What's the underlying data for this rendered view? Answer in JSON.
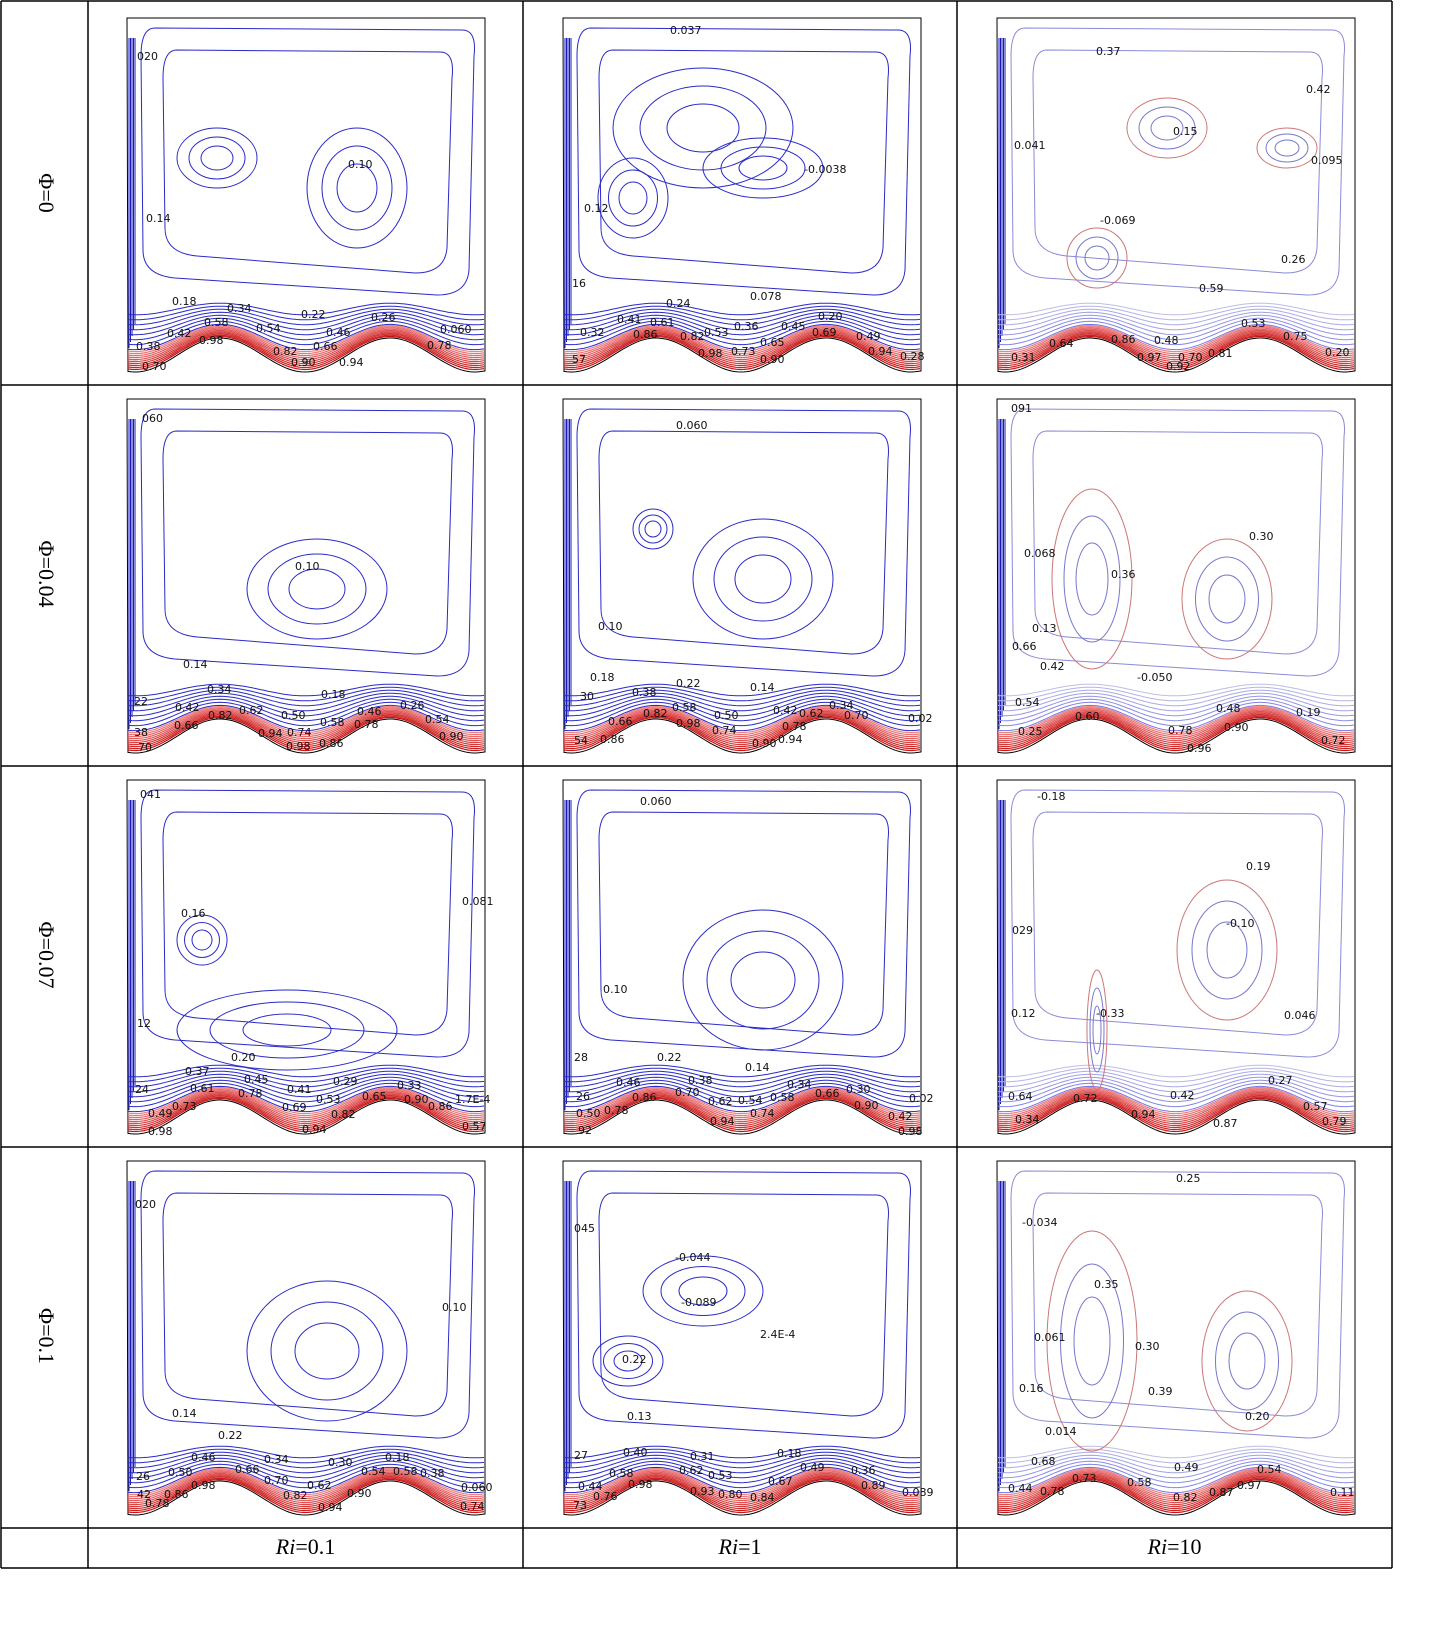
{
  "rows": [
    {
      "label": "Φ=0",
      "panels": [
        {
          "labels": [
            "020",
            "0.10",
            "0.14",
            "0.18",
            "0.34",
            "0.22",
            "0.26",
            "0.58",
            "0.54",
            "0.46",
            "0.060",
            "0.42",
            "0.98",
            "0.66",
            "0.82",
            "0.78",
            "0.90",
            "0.94",
            "0.38",
            "0.70"
          ]
        },
        {
          "labels": [
            "0.037",
            "-0.0038",
            "0.12",
            "16",
            "0.24",
            "0.078",
            "0.41",
            "0.61",
            "0.20",
            "0.32",
            "0.86",
            "0.82",
            "0.53",
            "0.36",
            "0.45",
            "0.65",
            "0.69",
            "0.49",
            "0.98",
            "0.73",
            "0.90",
            "0.94",
            "0.28",
            "57"
          ]
        },
        {
          "labels": [
            "0.37",
            "0.42",
            "0.15",
            "0.041",
            "0.095",
            "-0.069",
            "0.26",
            "0.59",
            "0.53",
            "0.75",
            "0.64",
            "0.86",
            "0.48",
            "0.31",
            "0.97",
            "0.70",
            "0.81",
            "0.92",
            "0.20"
          ]
        }
      ]
    },
    {
      "label": "Φ=0.04",
      "panels": [
        {
          "labels": [
            "060",
            "0.10",
            "0.14",
            "0.34",
            "0.18",
            "22",
            "0.42",
            "0.26",
            "0.46",
            "0.82",
            "0.62",
            "0.50",
            "0.58",
            "0.78",
            "0.54",
            "0.66",
            "0.94",
            "0.74",
            "0.86",
            "0.98",
            "0.90",
            "38",
            "70"
          ]
        },
        {
          "labels": [
            "0.060",
            "0.10",
            "0.18",
            "0.22",
            "0.14",
            "0.38",
            "30",
            "0.34",
            "0.58",
            "0.50",
            "0.42",
            "0.62",
            "0.70",
            "0.82",
            "0.66",
            "0.98",
            "0.74",
            "0.78",
            "0.90",
            "0.94",
            "54",
            "0.86",
            "0.02"
          ]
        },
        {
          "labels": [
            "091",
            "0.30",
            "0.068",
            "0.36",
            "0.13",
            "0.66",
            "0.42",
            "-0.050",
            "0.54",
            "0.48",
            "0.19",
            "0.60",
            "0.90",
            "0.78",
            "0.25",
            "0.96",
            "0.72"
          ]
        }
      ]
    },
    {
      "label": "Φ=0.07",
      "panels": [
        {
          "labels": [
            "041",
            "0.081",
            "0.16",
            "12",
            "0.20",
            "0.37",
            "0.45",
            "0.41",
            "0.29",
            "0.33",
            "24",
            "0.61",
            "0.78",
            "0.53",
            "0.65",
            "0.90",
            "1.7E-4",
            "0.73",
            "0.69",
            "0.82",
            "0.86",
            "0.49",
            "0.98",
            "0.94",
            "0.57"
          ]
        },
        {
          "labels": [
            "0.060",
            "0.10",
            "28",
            "0.22",
            "0.14",
            "0.38",
            "0.34",
            "0.46",
            "0.30",
            "26",
            "0.86",
            "0.70",
            "0.62",
            "0.54",
            "0.58",
            "0.66",
            "0.02",
            "0.50",
            "0.78",
            "0.74",
            "0.90",
            "0.94",
            "0.42",
            "92",
            "0.98"
          ]
        },
        {
          "labels": [
            "-0.18",
            "0.19",
            "-0.10",
            "029",
            "0.12",
            "-0.33",
            "0.046",
            "0.27",
            "0.64",
            "0.72",
            "0.42",
            "0.34",
            "0.94",
            "0.87",
            "0.57",
            "0.79"
          ]
        }
      ]
    },
    {
      "label": "Φ=0.1",
      "panels": [
        {
          "labels": [
            "020",
            "0.10",
            "0.14",
            "0.22",
            "0.46",
            "0.34",
            "0.30",
            "0.18",
            "0.66",
            "0.54",
            "0.58",
            "0.38",
            "26",
            "0.50",
            "0.70",
            "0.62",
            "0.90",
            "0.060",
            "42",
            "0.86",
            "0.98",
            "0.82",
            "0.94",
            "0.78",
            "0.74"
          ]
        },
        {
          "labels": [
            "045",
            "-0.044",
            "-0.089",
            "2.4E-4",
            "0.22",
            "0.13",
            "27",
            "0.40",
            "0.31",
            "0.18",
            "0.58",
            "0.62",
            "0.53",
            "0.49",
            "0.36",
            "0.44",
            "0.98",
            "0.67",
            "0.89",
            "0.089",
            "0.76",
            "0.93",
            "0.80",
            "0.84",
            "73"
          ]
        },
        {
          "labels": [
            "0.25",
            "-0.034",
            "0.35",
            "0.061",
            "0.30",
            "0.16",
            "0.39",
            "0.20",
            "0.014",
            "0.68",
            "0.49",
            "0.54",
            "0.73",
            "0.58",
            "0.44",
            "0.78",
            "0.82",
            "0.87",
            "0.97",
            "0.11"
          ]
        }
      ]
    }
  ],
  "columns": [
    {
      "var": "Ri",
      "eq": "=0.1"
    },
    {
      "var": "Ri",
      "eq": "=1"
    },
    {
      "var": "Ri",
      "eq": "=10"
    }
  ]
}
